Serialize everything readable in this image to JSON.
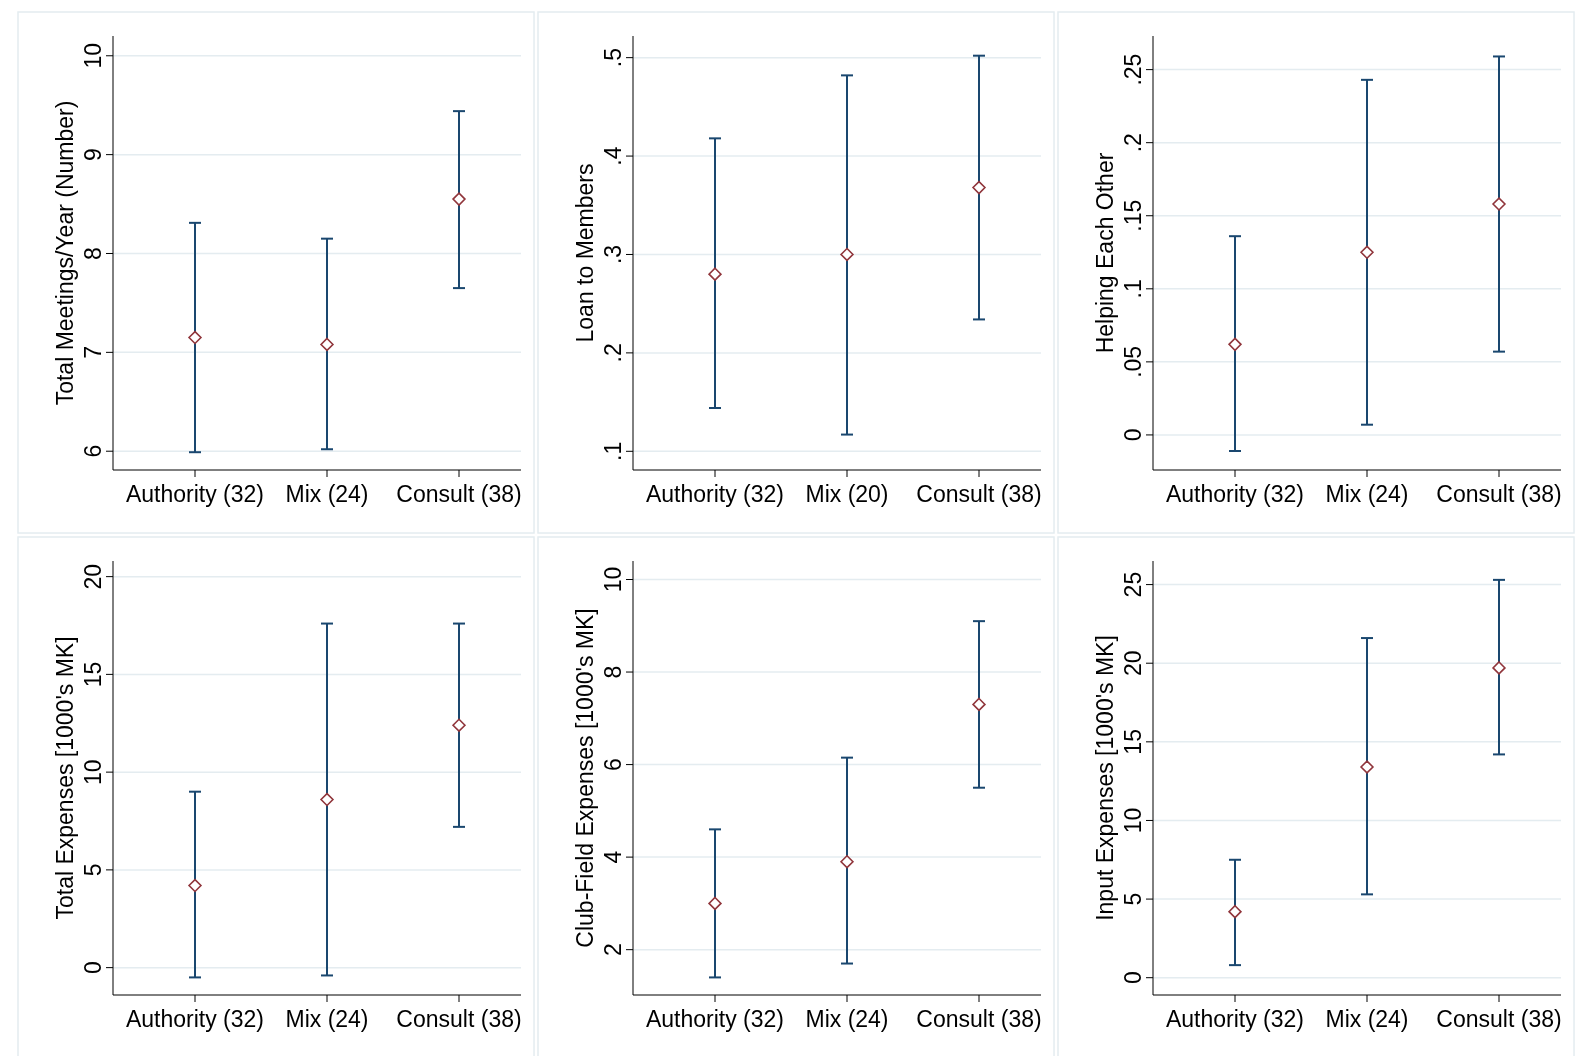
{
  "chart_data": [
    {
      "type": "scatter",
      "ylabel": "Total Meetings/Year (Number)",
      "categories": [
        "Authority (32)",
        "Mix (24)",
        "Consult (38)"
      ],
      "series": [
        {
          "color": "#90353b",
          "values": [
            7.15,
            7.08,
            8.55
          ],
          "errors": [
            [
              5.99,
              8.31
            ],
            [
              6.02,
              8.15
            ],
            [
              7.65,
              9.44
            ]
          ]
        }
      ],
      "ylim": [
        5.81,
        10.2
      ],
      "yticks": [
        6,
        7,
        8,
        9,
        10
      ],
      "grid": "y",
      "marker": "diamond"
    },
    {
      "type": "scatter",
      "ylabel": "Loan to Members",
      "categories": [
        "Authority (32)",
        "Mix (20)",
        "Consult (38)"
      ],
      "series": [
        {
          "color": "#90353b",
          "values": [
            0.28,
            0.3,
            0.368
          ],
          "errors": [
            [
              0.144,
              0.418
            ],
            [
              0.117,
              0.482
            ],
            [
              0.234,
              0.502
            ]
          ]
        }
      ],
      "ylim": [
        0.081,
        0.522
      ],
      "yticks": [
        {
          "value": 0.1,
          "label": ".1"
        },
        {
          "value": 0.2,
          "label": ".2"
        },
        {
          "value": 0.3,
          "label": ".3"
        },
        {
          "value": 0.4,
          "label": ".4"
        },
        {
          "value": 0.5,
          "label": ".5"
        }
      ],
      "grid": "y",
      "marker": "diamond"
    },
    {
      "type": "scatter",
      "ylabel": "Helping Each Other",
      "categories": [
        "Authority (32)",
        "Mix (24)",
        "Consult (38)"
      ],
      "series": [
        {
          "color": "#90353b",
          "values": [
            0.062,
            0.125,
            0.158
          ],
          "errors": [
            [
              -0.011,
              0.136
            ],
            [
              0.007,
              0.243
            ],
            [
              0.057,
              0.259
            ]
          ]
        }
      ],
      "ylim": [
        -0.024,
        0.273
      ],
      "yticks": [
        0,
        {
          "value": 0.05,
          "label": ".05"
        },
        {
          "value": 0.1,
          "label": ".1"
        },
        {
          "value": 0.15,
          "label": ".15"
        },
        {
          "value": 0.2,
          "label": ".2"
        },
        {
          "value": 0.25,
          "label": ".25"
        }
      ],
      "grid": "y",
      "marker": "diamond"
    },
    {
      "type": "scatter",
      "ylabel": "Total Expenses [1000's MK]",
      "categories": [
        "Authority (32)",
        "Mix (24)",
        "Consult (38)"
      ],
      "series": [
        {
          "color": "#90353b",
          "values": [
            4.2,
            8.6,
            12.4
          ],
          "errors": [
            [
              -0.5,
              9.0
            ],
            [
              -0.4,
              17.6
            ],
            [
              7.2,
              17.6
            ]
          ]
        }
      ],
      "ylim": [
        -1.4,
        20.8
      ],
      "yticks": [
        0,
        5,
        10,
        15,
        20
      ],
      "grid": "y",
      "marker": "diamond"
    },
    {
      "type": "scatter",
      "ylabel": "Club-Field Expenses [1000's MK]",
      "categories": [
        "Authority (32)",
        "Mix (24)",
        "Consult (38)"
      ],
      "series": [
        {
          "color": "#90353b",
          "values": [
            3.0,
            3.9,
            7.3
          ],
          "errors": [
            [
              1.4,
              4.6
            ],
            [
              1.7,
              6.15
            ],
            [
              5.5,
              9.1
            ]
          ]
        }
      ],
      "ylim": [
        1.02,
        10.4
      ],
      "yticks": [
        2,
        4,
        6,
        8,
        10
      ],
      "grid": "y",
      "marker": "diamond"
    },
    {
      "type": "scatter",
      "ylabel": "Input Expenses [1000's MK]",
      "categories": [
        "Authority (32)",
        "Mix (24)",
        "Consult (38)"
      ],
      "series": [
        {
          "color": "#90353b",
          "values": [
            4.2,
            13.4,
            19.7
          ],
          "errors": [
            [
              0.8,
              7.5
            ],
            [
              5.3,
              21.6
            ],
            [
              14.2,
              25.3
            ]
          ]
        }
      ],
      "ylim": [
        -1.1,
        26.5
      ],
      "yticks": [
        0,
        5,
        10,
        15,
        20,
        25
      ],
      "grid": "y",
      "marker": "diamond"
    }
  ]
}
